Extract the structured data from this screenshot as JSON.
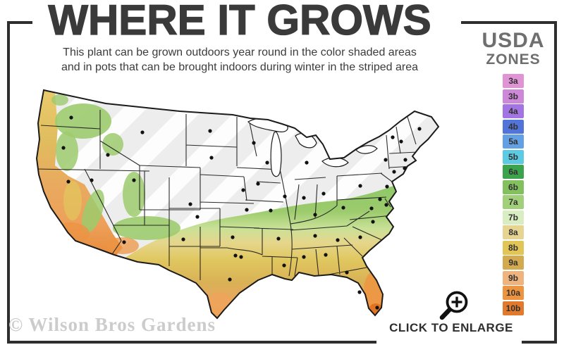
{
  "header": {
    "title": "WHERE IT GROWS",
    "subtitle_line1": "This plant can be grown outdoors year round in the color shaded areas",
    "subtitle_line2": "and in pots that can be brought indoors during winter in the striped area"
  },
  "legend": {
    "title_line1": "USDA",
    "title_line2": "ZONES",
    "zones": [
      {
        "label": "3a",
        "color": "#e094d6"
      },
      {
        "label": "3b",
        "color": "#ce88da"
      },
      {
        "label": "4a",
        "color": "#a275e2"
      },
      {
        "label": "4b",
        "color": "#5273d8"
      },
      {
        "label": "5a",
        "color": "#63a0e4"
      },
      {
        "label": "5b",
        "color": "#5ccae2"
      },
      {
        "label": "6a",
        "color": "#3aa34b"
      },
      {
        "label": "6b",
        "color": "#83c15e"
      },
      {
        "label": "7a",
        "color": "#a2cf79"
      },
      {
        "label": "7b",
        "color": "#d9edc2"
      },
      {
        "label": "8a",
        "color": "#e6d492"
      },
      {
        "label": "8b",
        "color": "#e1c556"
      },
      {
        "label": "9a",
        "color": "#d4aa50"
      },
      {
        "label": "9b",
        "color": "#efb37e"
      },
      {
        "label": "10a",
        "color": "#ec9440"
      },
      {
        "label": "10b",
        "color": "#e17a2c"
      }
    ]
  },
  "map": {
    "uncolored_land_color": "#ededed",
    "stripe_color": "#ffffff",
    "state_border_color": "#1b1b1b",
    "marker_color": "#111111"
  },
  "footer": {
    "watermark": "© Wilson Bros Gardens",
    "enlarge_label": "CLICK TO ENLARGE",
    "enlarge_icon": "magnifying-glass-plus"
  },
  "frame_color": "#2e2e2e"
}
